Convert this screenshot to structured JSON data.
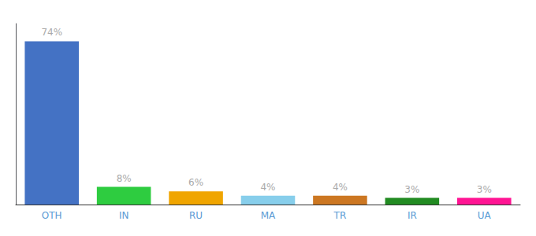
{
  "chart_data": {
    "type": "bar",
    "categories": [
      "OTH",
      "IN",
      "RU",
      "MA",
      "TR",
      "IR",
      "UA"
    ],
    "values": [
      74,
      8,
      6,
      4,
      4,
      3,
      3
    ],
    "value_labels": [
      "74%",
      "8%",
      "6%",
      "4%",
      "4%",
      "3%",
      "3%"
    ],
    "colors": [
      "#4472c4",
      "#2ecc40",
      "#f0a500",
      "#87ceeb",
      "#cc7722",
      "#228b22",
      "#ff1493"
    ],
    "ylim": [
      0,
      82
    ],
    "data_labels": true,
    "tick_labels": "x",
    "grid": false
  }
}
